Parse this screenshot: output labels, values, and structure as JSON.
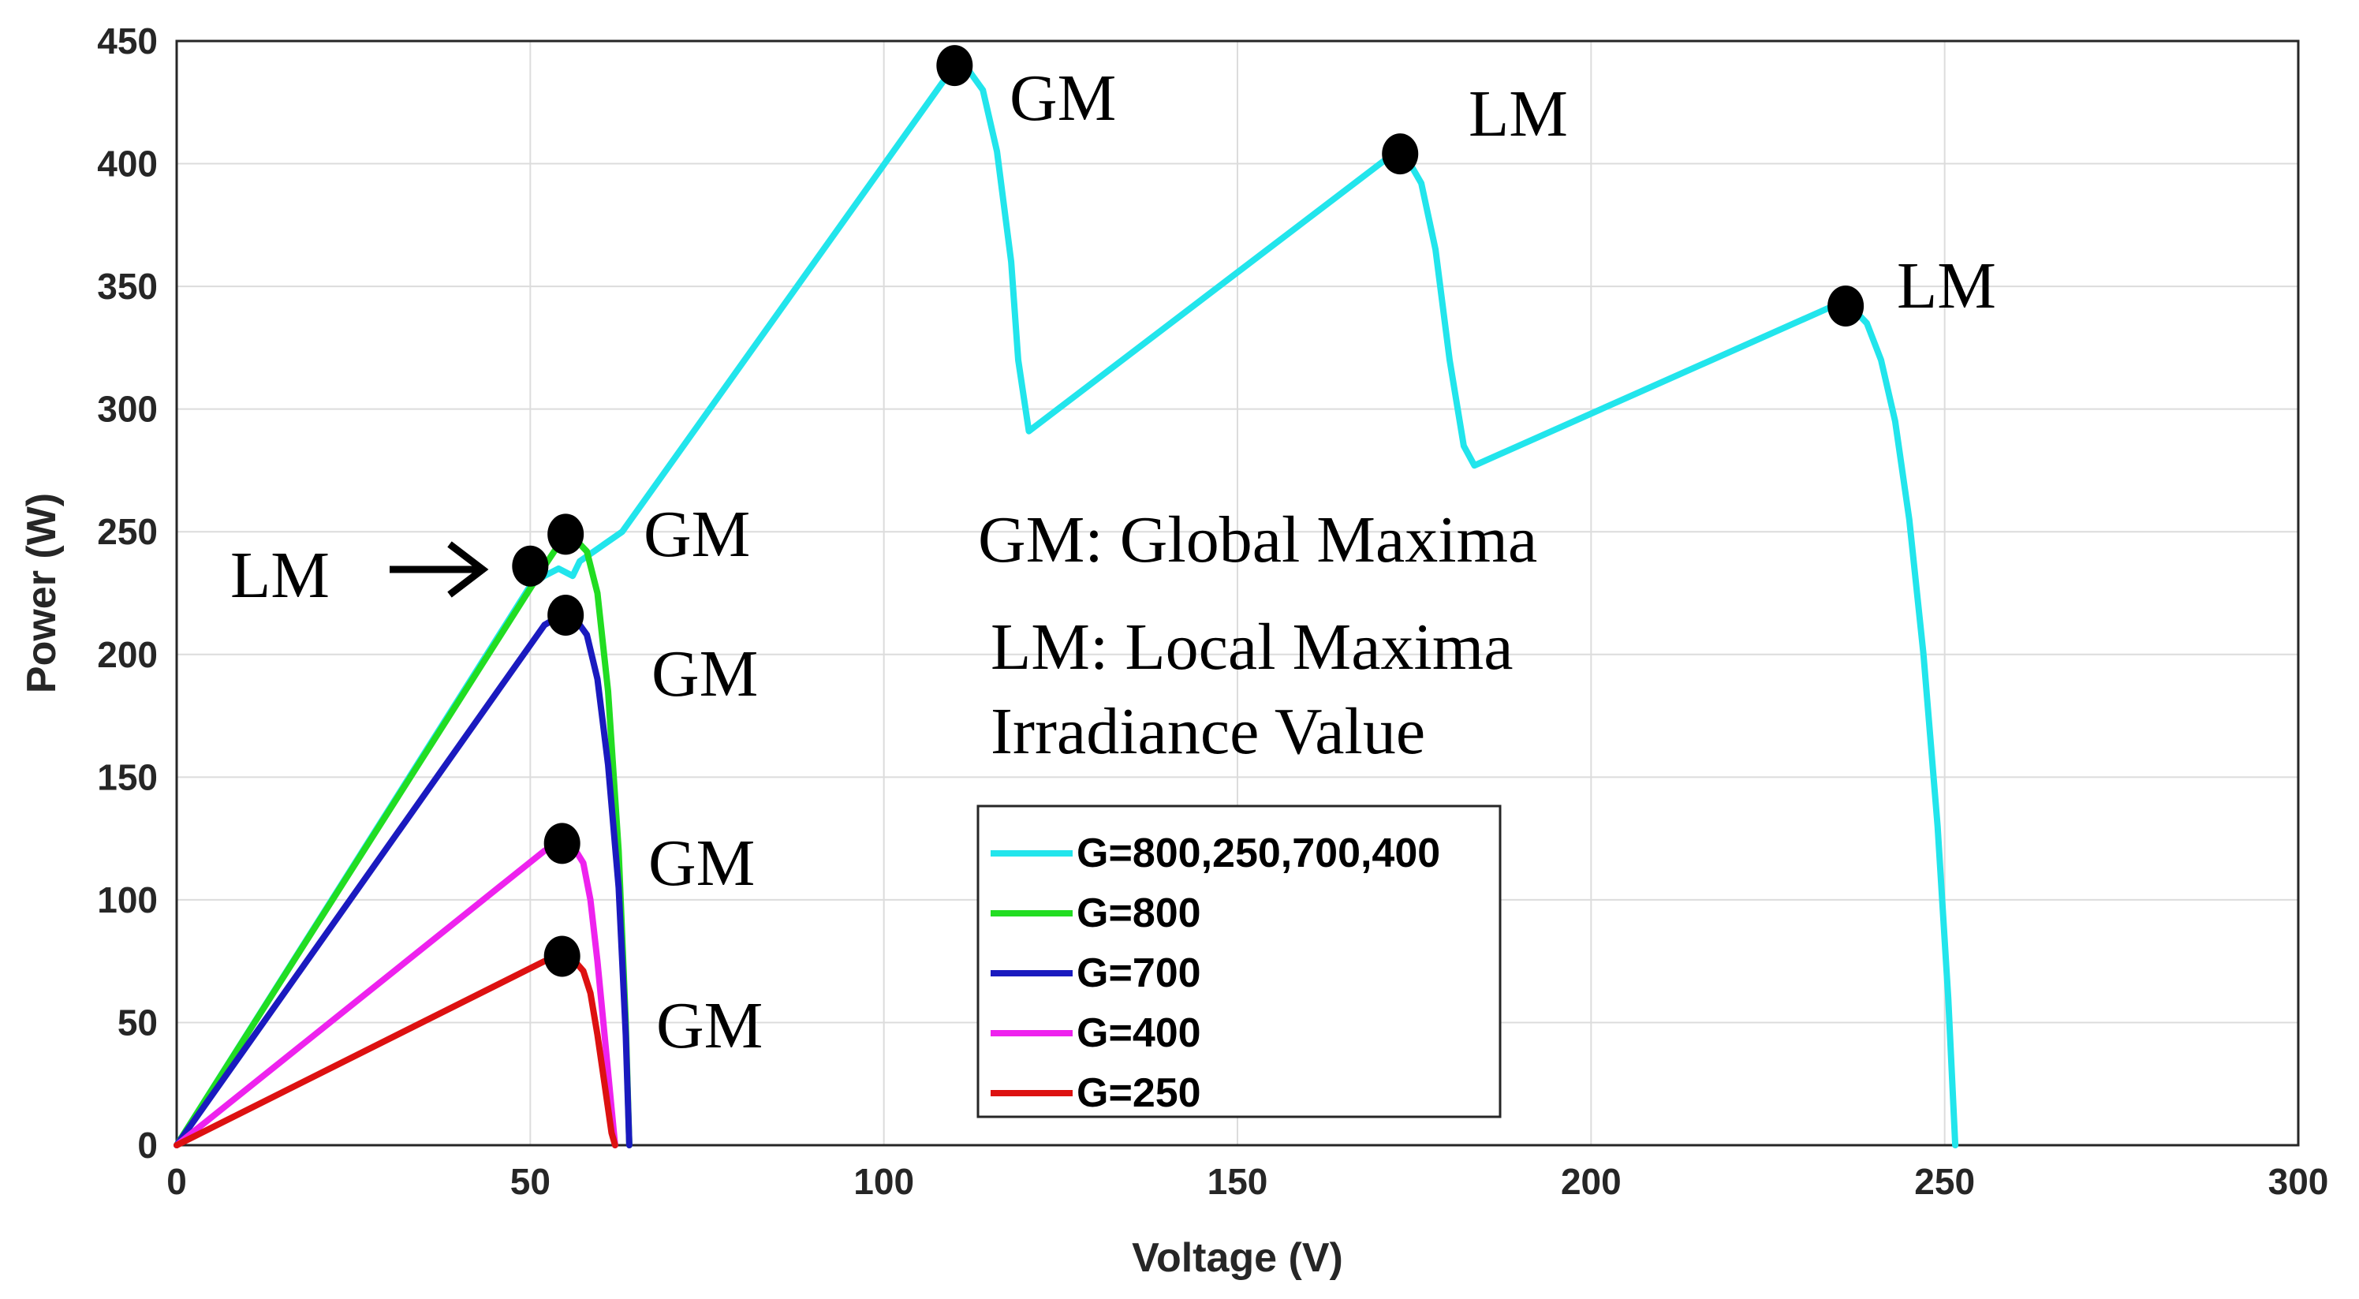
{
  "chart_data": {
    "type": "line",
    "title": "",
    "xlabel": "Voltage (V)",
    "ylabel": "Power (W)",
    "xlim": [
      0,
      300
    ],
    "ylim": [
      0,
      450
    ],
    "xticks": [
      0,
      50,
      100,
      150,
      200,
      250,
      300
    ],
    "yticks": [
      0,
      50,
      100,
      150,
      200,
      250,
      300,
      350,
      400,
      450
    ],
    "grid": true,
    "legend_position": "lower-center",
    "series": [
      {
        "name": "G=800,250,700,400",
        "color": "#22E5EC",
        "points": [
          [
            0,
            0
          ],
          [
            50,
            228
          ],
          [
            52,
            232
          ],
          [
            54,
            235
          ],
          [
            56,
            232
          ],
          [
            57,
            238
          ],
          [
            63,
            250
          ],
          [
            110,
            440
          ],
          [
            112,
            438
          ],
          [
            114,
            430
          ],
          [
            116,
            405
          ],
          [
            118,
            360
          ],
          [
            119,
            320
          ],
          [
            120.5,
            291
          ],
          [
            172,
            404
          ],
          [
            174,
            402
          ],
          [
            176,
            392
          ],
          [
            178,
            365
          ],
          [
            180,
            320
          ],
          [
            182,
            285
          ],
          [
            183.5,
            277
          ],
          [
            235,
            343
          ],
          [
            237,
            341
          ],
          [
            239,
            335
          ],
          [
            241,
            320
          ],
          [
            243,
            295
          ],
          [
            245,
            255
          ],
          [
            247,
            200
          ],
          [
            249,
            130
          ],
          [
            250.5,
            60
          ],
          [
            251.5,
            0
          ]
        ]
      },
      {
        "name": "G=800",
        "color": "#22DD22",
        "points": [
          [
            0,
            0
          ],
          [
            52,
            236
          ],
          [
            55,
            249
          ],
          [
            56,
            248
          ],
          [
            58,
            242
          ],
          [
            59.5,
            225
          ],
          [
            61,
            185
          ],
          [
            62.5,
            120
          ],
          [
            63.5,
            50
          ],
          [
            64,
            0
          ]
        ]
      },
      {
        "name": "G=700",
        "color": "#1A1ABF",
        "points": [
          [
            0,
            0
          ],
          [
            52,
            212
          ],
          [
            55,
            217
          ],
          [
            56,
            216
          ],
          [
            58,
            208
          ],
          [
            59.5,
            190
          ],
          [
            61,
            155
          ],
          [
            62.5,
            105
          ],
          [
            63.5,
            45
          ],
          [
            64,
            0
          ]
        ]
      },
      {
        "name": "G=400",
        "color": "#EE22EE",
        "points": [
          [
            0,
            0
          ],
          [
            52,
            120
          ],
          [
            54.5,
            124
          ],
          [
            56,
            122
          ],
          [
            57.5,
            115
          ],
          [
            58.5,
            100
          ],
          [
            59.5,
            75
          ],
          [
            60.5,
            45
          ],
          [
            61.5,
            15
          ],
          [
            62,
            0
          ]
        ]
      },
      {
        "name": "G=250",
        "color": "#DD1111",
        "points": [
          [
            0,
            0
          ],
          [
            52,
            75
          ],
          [
            54.5,
            77
          ],
          [
            56,
            76
          ],
          [
            57.5,
            71
          ],
          [
            58.5,
            62
          ],
          [
            59.5,
            45
          ],
          [
            60.5,
            25
          ],
          [
            61.5,
            5
          ],
          [
            62,
            0
          ]
        ]
      }
    ],
    "markers": [
      {
        "x": 110,
        "y": 440,
        "label": "GM"
      },
      {
        "x": 173,
        "y": 404,
        "label": "LM"
      },
      {
        "x": 236,
        "y": 342,
        "label": "LM"
      },
      {
        "x": 50,
        "y": 236,
        "label": "LM"
      },
      {
        "x": 55,
        "y": 249,
        "label": "GM"
      },
      {
        "x": 55,
        "y": 216,
        "label": "GM"
      },
      {
        "x": 54.5,
        "y": 123,
        "label": "GM"
      },
      {
        "x": 54.5,
        "y": 77,
        "label": "GM"
      }
    ],
    "annotations": [
      "GM: Global Maxima",
      "LM: Local Maxima",
      "Irradiance Value"
    ]
  }
}
